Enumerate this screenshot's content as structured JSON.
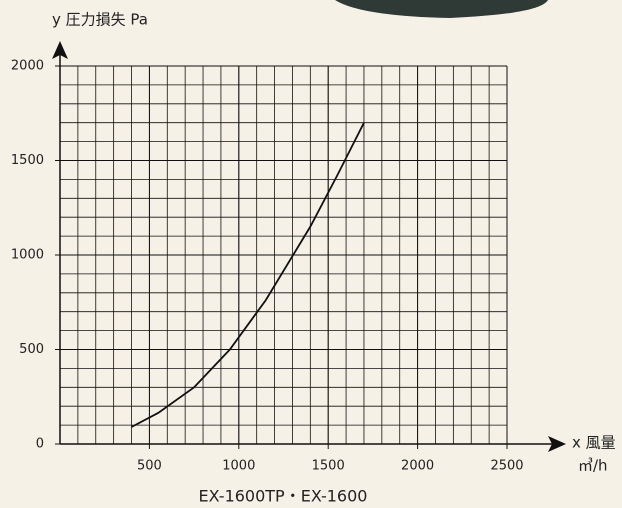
{
  "chart_data": {
    "type": "line",
    "y_label": "y 圧力損失 Pa",
    "x_label": "x 風量",
    "x_unit": "㎥/h",
    "caption": "EX-1600TP・EX-1600",
    "x": [
      400,
      550,
      750,
      950,
      1150,
      1400,
      1550,
      1700
    ],
    "values": [
      90,
      165,
      300,
      500,
      760,
      1150,
      1420,
      1700
    ],
    "color": "#111111",
    "xlim": [
      0,
      2500
    ],
    "ylim": [
      0,
      2000
    ],
    "xticks": [
      500,
      1000,
      1500,
      2000,
      2500
    ],
    "yticks": [
      0,
      500,
      1000,
      1500,
      2000
    ],
    "grid": true,
    "grid_step": 100
  }
}
